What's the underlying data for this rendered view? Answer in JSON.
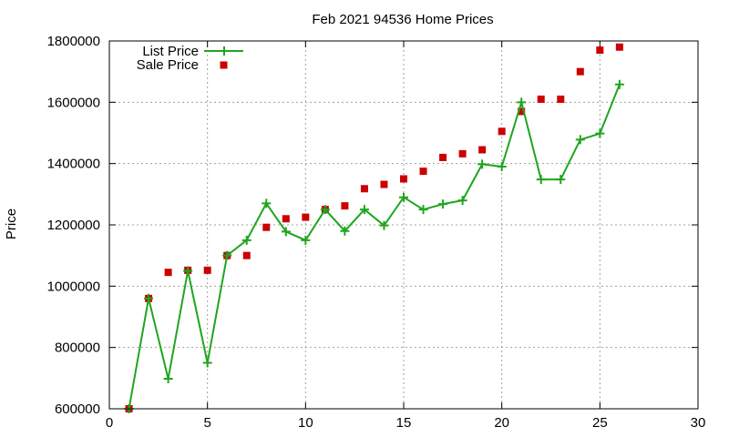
{
  "chart_data": {
    "type": "line",
    "title": "Feb 2021 94536 Home Prices",
    "ylabel": "Price",
    "xlabel": "",
    "xlim": [
      0,
      30
    ],
    "ylim": [
      600000,
      1800000
    ],
    "x_ticks": [
      0,
      5,
      10,
      15,
      20,
      25,
      30
    ],
    "y_ticks": [
      600000,
      800000,
      1000000,
      1200000,
      1400000,
      1600000,
      1800000
    ],
    "grid": true,
    "legend_position": "top-left",
    "series": [
      {
        "name": "List Price",
        "style": "line-with-plus-markers",
        "color": "#1fa51f",
        "x": [
          1,
          2,
          3,
          4,
          5,
          6,
          7,
          8,
          9,
          10,
          11,
          12,
          13,
          14,
          15,
          16,
          17,
          18,
          19,
          20,
          21,
          22,
          23,
          24,
          25,
          26
        ],
        "values": [
          600000,
          960000,
          698000,
          1050000,
          750000,
          1100000,
          1150000,
          1270000,
          1178000,
          1150000,
          1250000,
          1180000,
          1250000,
          1198000,
          1290000,
          1250000,
          1268000,
          1280000,
          1398000,
          1390000,
          1600000,
          1348000,
          1348000,
          1478000,
          1498000,
          1658000
        ]
      },
      {
        "name": "Sale Price",
        "style": "square-markers",
        "color": "#cc0000",
        "x": [
          1,
          2,
          3,
          4,
          5,
          6,
          7,
          8,
          9,
          10,
          11,
          12,
          13,
          14,
          15,
          16,
          17,
          18,
          19,
          20,
          21,
          22,
          23,
          24,
          25,
          26
        ],
        "values": [
          600000,
          960000,
          1045000,
          1052000,
          1052000,
          1100000,
          1100000,
          1192000,
          1220000,
          1225000,
          1250000,
          1262000,
          1318000,
          1332000,
          1350000,
          1375000,
          1420000,
          1432000,
          1445000,
          1505000,
          1570000,
          1610000,
          1610000,
          1700000,
          1770000,
          1780000
        ]
      }
    ]
  }
}
